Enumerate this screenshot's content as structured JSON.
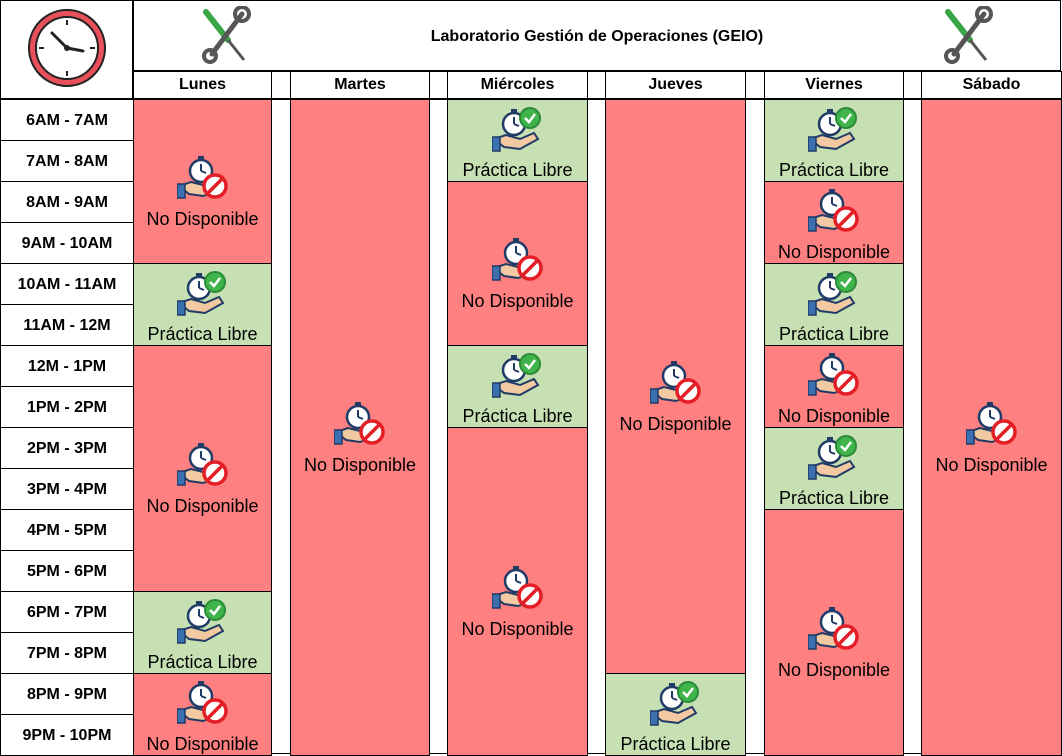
{
  "title": "Laboratorio Gestión de Operaciones (GEIO)",
  "icons": {
    "corner": "wall-clock-icon",
    "header_left": "wrench-screwdriver-icon",
    "header_right": "wrench-screwdriver-icon",
    "unavailable": "clock-hand-prohibited-icon",
    "available": "clock-hand-check-icon"
  },
  "colors": {
    "unavailable": "#ff8080",
    "available": "#c6e0b4"
  },
  "days": [
    "Lunes",
    "Martes",
    "Miércoles",
    "Jueves",
    "Viernes",
    "Sábado"
  ],
  "time_slots": [
    "6AM - 7AM",
    "7AM - 8AM",
    "8AM - 9AM",
    "9AM - 10AM",
    "10AM - 11AM",
    "11AM - 12M",
    "12M - 1PM",
    "1PM - 2PM",
    "2PM - 3PM",
    "3PM - 4PM",
    "4PM - 5PM",
    "5PM - 6PM",
    "6PM - 7PM",
    "7PM - 8PM",
    "8PM - 9PM",
    "9PM - 10PM"
  ],
  "status_labels": {
    "unavailable": "No Disponible",
    "available": "Práctica Libre"
  },
  "schedule": [
    {
      "day": "Lunes",
      "blocks": [
        {
          "start": 0,
          "span": 4,
          "status": "unavailable",
          "label": "No Disponible"
        },
        {
          "start": 4,
          "span": 2,
          "status": "available",
          "label": "Práctica Libre"
        },
        {
          "start": 6,
          "span": 6,
          "status": "unavailable",
          "label": "No Disponible"
        },
        {
          "start": 12,
          "span": 2,
          "status": "available",
          "label": "Práctica Libre"
        },
        {
          "start": 14,
          "span": 2,
          "status": "unavailable",
          "label": "No Disponible"
        }
      ]
    },
    {
      "day": "Martes",
      "blocks": [
        {
          "start": 0,
          "span": 16,
          "status": "unavailable",
          "label": "No Disponible"
        }
      ]
    },
    {
      "day": "Miércoles",
      "blocks": [
        {
          "start": 0,
          "span": 2,
          "status": "available",
          "label": "Práctica Libre"
        },
        {
          "start": 2,
          "span": 4,
          "status": "unavailable",
          "label": "No Disponible"
        },
        {
          "start": 6,
          "span": 2,
          "status": "available",
          "label": "Práctica Libre"
        },
        {
          "start": 8,
          "span": 8,
          "status": "unavailable",
          "label": "No Disponible"
        }
      ]
    },
    {
      "day": "Jueves",
      "blocks": [
        {
          "start": 0,
          "span": 14,
          "status": "unavailable",
          "label": "No Disponible"
        },
        {
          "start": 14,
          "span": 2,
          "status": "available",
          "label": "Práctica Libre"
        }
      ]
    },
    {
      "day": "Viernes",
      "blocks": [
        {
          "start": 0,
          "span": 2,
          "status": "available",
          "label": "Práctica Libre"
        },
        {
          "start": 2,
          "span": 2,
          "status": "unavailable",
          "label": "No Disponible"
        },
        {
          "start": 4,
          "span": 2,
          "status": "available",
          "label": "Práctica Libre"
        },
        {
          "start": 6,
          "span": 2,
          "status": "unavailable",
          "label": "No Disponible"
        },
        {
          "start": 8,
          "span": 2,
          "status": "available",
          "label": "Práctica Libre"
        },
        {
          "start": 10,
          "span": 6,
          "status": "unavailable",
          "label": "No Disponible"
        }
      ]
    },
    {
      "day": "Sábado",
      "blocks": [
        {
          "start": 0,
          "span": 16,
          "status": "unavailable",
          "label": "No Disponible"
        }
      ]
    }
  ]
}
